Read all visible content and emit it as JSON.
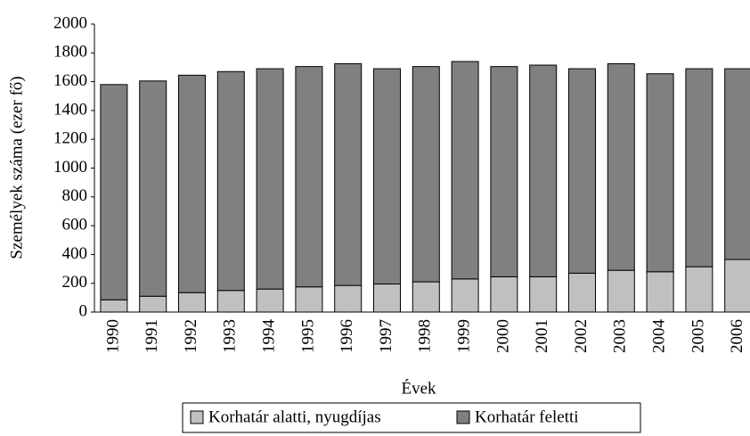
{
  "chart_data": {
    "type": "stacked_bar",
    "y_label": "Személyek száma (ezer fő)",
    "x_label": "Évek",
    "categories": [
      "1990",
      "1991",
      "1992",
      "1993",
      "1994",
      "1995",
      "1996",
      "1997",
      "1998",
      "1999",
      "2000",
      "2001",
      "2002",
      "2003",
      "2004",
      "2005",
      "2006"
    ],
    "series": [
      {
        "name": "Korhatár alatti, nyugdíjas",
        "color": "#c0c0c0",
        "values": [
          85,
          110,
          135,
          150,
          160,
          175,
          185,
          195,
          210,
          230,
          245,
          245,
          270,
          290,
          280,
          315,
          365
        ]
      },
      {
        "name": "Korhatár feletti",
        "color": "#808080",
        "values": [
          1495,
          1495,
          1510,
          1520,
          1530,
          1530,
          1540,
          1495,
          1495,
          1510,
          1460,
          1470,
          1420,
          1435,
          1375,
          1375,
          1325
        ]
      }
    ],
    "ylim": [
      0,
      2000
    ],
    "yticks": [
      0,
      200,
      400,
      600,
      800,
      1000,
      1200,
      1400,
      1600,
      1800,
      2000
    ],
    "legend": "bottom"
  }
}
